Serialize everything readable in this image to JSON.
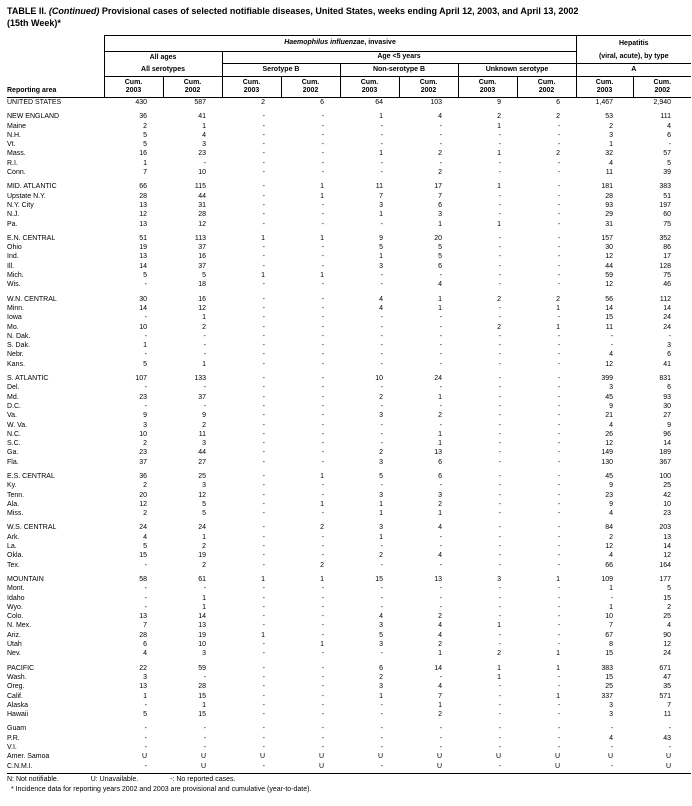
{
  "title": {
    "prefix": "TABLE II. ",
    "continued": "(Continued)",
    "rest": " Provisional cases of selected notifiable diseases, United States, weeks ending April 12, 2003, and April 13, 2002",
    "line2": "(15th Week)*"
  },
  "header": {
    "reporting_area": "Reporting area",
    "hib_italic": "Haemophilus influenzae",
    "hib_rest": ", invasive",
    "hepatitis_line1": "Hepatitis",
    "hepatitis_line2": "(viral, acute), by type",
    "all_ages": "All ages",
    "age_lt5": "Age <5 years",
    "all_serotypes": "All serotypes",
    "serotype_b": "Serotype B",
    "non_serotype_b": "Non-serotype B",
    "unknown_serotype": "Unknown serotype",
    "hep_a": "A",
    "cum2003": "Cum.\n2003",
    "cum2002": "Cum.\n2002"
  },
  "table": {
    "column_groups": [
      "All serotypes Cum. 2003",
      "All serotypes Cum. 2002",
      "Serotype B Cum. 2003",
      "Serotype B Cum. 2002",
      "Non-serotype B Cum. 2003",
      "Non-serotype B Cum. 2002",
      "Unknown serotype Cum. 2003",
      "Unknown serotype Cum. 2002",
      "Hepatitis A Cum. 2003",
      "Hepatitis A Cum. 2002"
    ],
    "sections": [
      {
        "rows": [
          [
            "UNITED STATES",
            "430",
            "587",
            "2",
            "6",
            "64",
            "103",
            "9",
            "6",
            "1,467",
            "2,940"
          ]
        ]
      },
      {
        "rows": [
          [
            "NEW ENGLAND",
            "36",
            "41",
            "-",
            "-",
            "1",
            "4",
            "2",
            "2",
            "53",
            "111"
          ],
          [
            "Maine",
            "2",
            "1",
            "-",
            "-",
            "-",
            "-",
            "1",
            "-",
            "2",
            "4"
          ],
          [
            "N.H.",
            "5",
            "4",
            "-",
            "-",
            "-",
            "-",
            "-",
            "-",
            "3",
            "6"
          ],
          [
            "Vt.",
            "5",
            "3",
            "-",
            "-",
            "-",
            "-",
            "-",
            "-",
            "1",
            "-"
          ],
          [
            "Mass.",
            "16",
            "23",
            "-",
            "-",
            "1",
            "2",
            "1",
            "2",
            "32",
            "57"
          ],
          [
            "R.I.",
            "1",
            "-",
            "-",
            "-",
            "-",
            "-",
            "-",
            "-",
            "4",
            "5"
          ],
          [
            "Conn.",
            "7",
            "10",
            "-",
            "-",
            "-",
            "2",
            "-",
            "-",
            "11",
            "39"
          ]
        ]
      },
      {
        "rows": [
          [
            "MID. ATLANTIC",
            "66",
            "115",
            "-",
            "1",
            "11",
            "17",
            "1",
            "-",
            "181",
            "383"
          ],
          [
            "Upstate N.Y.",
            "28",
            "44",
            "-",
            "1",
            "7",
            "7",
            "-",
            "-",
            "28",
            "51"
          ],
          [
            "N.Y. City",
            "13",
            "31",
            "-",
            "-",
            "3",
            "6",
            "-",
            "-",
            "93",
            "197"
          ],
          [
            "N.J.",
            "12",
            "28",
            "-",
            "-",
            "1",
            "3",
            "-",
            "-",
            "29",
            "60"
          ],
          [
            "Pa.",
            "13",
            "12",
            "-",
            "-",
            "-",
            "1",
            "1",
            "-",
            "31",
            "75"
          ]
        ]
      },
      {
        "rows": [
          [
            "E.N. CENTRAL",
            "51",
            "113",
            "1",
            "1",
            "9",
            "20",
            "-",
            "-",
            "157",
            "352"
          ],
          [
            "Ohio",
            "19",
            "37",
            "-",
            "-",
            "5",
            "5",
            "-",
            "-",
            "30",
            "86"
          ],
          [
            "Ind.",
            "13",
            "16",
            "-",
            "-",
            "1",
            "5",
            "-",
            "-",
            "12",
            "17"
          ],
          [
            "Ill.",
            "14",
            "37",
            "-",
            "-",
            "3",
            "6",
            "-",
            "-",
            "44",
            "128"
          ],
          [
            "Mich.",
            "5",
            "5",
            "1",
            "1",
            "-",
            "-",
            "-",
            "-",
            "59",
            "75"
          ],
          [
            "Wis.",
            "-",
            "18",
            "-",
            "-",
            "-",
            "4",
            "-",
            "-",
            "12",
            "46"
          ]
        ]
      },
      {
        "rows": [
          [
            "W.N. CENTRAL",
            "30",
            "16",
            "-",
            "-",
            "4",
            "1",
            "2",
            "2",
            "56",
            "112"
          ],
          [
            "Minn.",
            "14",
            "12",
            "-",
            "-",
            "4",
            "1",
            "-",
            "1",
            "14",
            "14"
          ],
          [
            "Iowa",
            "-",
            "1",
            "-",
            "-",
            "-",
            "-",
            "-",
            "-",
            "15",
            "24"
          ],
          [
            "Mo.",
            "10",
            "2",
            "-",
            "-",
            "-",
            "-",
            "2",
            "1",
            "11",
            "24"
          ],
          [
            "N. Dak.",
            "-",
            "-",
            "-",
            "-",
            "-",
            "-",
            "-",
            "-",
            "-",
            "-"
          ],
          [
            "S. Dak.",
            "1",
            "-",
            "-",
            "-",
            "-",
            "-",
            "-",
            "-",
            "-",
            "3"
          ],
          [
            "Nebr.",
            "-",
            "-",
            "-",
            "-",
            "-",
            "-",
            "-",
            "-",
            "4",
            "6"
          ],
          [
            "Kans.",
            "5",
            "1",
            "-",
            "-",
            "-",
            "-",
            "-",
            "-",
            "12",
            "41"
          ]
        ]
      },
      {
        "rows": [
          [
            "S. ATLANTIC",
            "107",
            "133",
            "-",
            "-",
            "10",
            "24",
            "-",
            "-",
            "399",
            "831"
          ],
          [
            "Del.",
            "-",
            "-",
            "-",
            "-",
            "-",
            "-",
            "-",
            "-",
            "3",
            "6"
          ],
          [
            "Md.",
            "23",
            "37",
            "-",
            "-",
            "2",
            "1",
            "-",
            "-",
            "45",
            "93"
          ],
          [
            "D.C.",
            "-",
            "-",
            "-",
            "-",
            "-",
            "-",
            "-",
            "-",
            "9",
            "30"
          ],
          [
            "Va.",
            "9",
            "9",
            "-",
            "-",
            "3",
            "2",
            "-",
            "-",
            "21",
            "27"
          ],
          [
            "W. Va.",
            "3",
            "2",
            "-",
            "-",
            "-",
            "-",
            "-",
            "-",
            "4",
            "9"
          ],
          [
            "N.C.",
            "10",
            "11",
            "-",
            "-",
            "-",
            "1",
            "-",
            "-",
            "26",
            "96"
          ],
          [
            "S.C.",
            "2",
            "3",
            "-",
            "-",
            "-",
            "1",
            "-",
            "-",
            "12",
            "14"
          ],
          [
            "Ga.",
            "23",
            "44",
            "-",
            "-",
            "2",
            "13",
            "-",
            "-",
            "149",
            "189"
          ],
          [
            "Fla.",
            "37",
            "27",
            "-",
            "-",
            "3",
            "6",
            "-",
            "-",
            "130",
            "367"
          ]
        ]
      },
      {
        "rows": [
          [
            "E.S. CENTRAL",
            "36",
            "25",
            "-",
            "1",
            "5",
            "6",
            "-",
            "-",
            "45",
            "100"
          ],
          [
            "Ky.",
            "2",
            "3",
            "-",
            "-",
            "-",
            "-",
            "-",
            "-",
            "9",
            "25"
          ],
          [
            "Tenn.",
            "20",
            "12",
            "-",
            "-",
            "3",
            "3",
            "-",
            "-",
            "23",
            "42"
          ],
          [
            "Ala.",
            "12",
            "5",
            "-",
            "1",
            "1",
            "2",
            "-",
            "-",
            "9",
            "10"
          ],
          [
            "Miss.",
            "2",
            "5",
            "-",
            "-",
            "1",
            "1",
            "-",
            "-",
            "4",
            "23"
          ]
        ]
      },
      {
        "rows": [
          [
            "W.S. CENTRAL",
            "24",
            "24",
            "-",
            "2",
            "3",
            "4",
            "-",
            "-",
            "84",
            "203"
          ],
          [
            "Ark.",
            "4",
            "1",
            "-",
            "-",
            "1",
            "-",
            "-",
            "-",
            "2",
            "13"
          ],
          [
            "La.",
            "5",
            "2",
            "-",
            "-",
            "-",
            "-",
            "-",
            "-",
            "12",
            "14"
          ],
          [
            "Okla.",
            "15",
            "19",
            "-",
            "-",
            "2",
            "4",
            "-",
            "-",
            "4",
            "12"
          ],
          [
            "Tex.",
            "-",
            "2",
            "-",
            "2",
            "-",
            "-",
            "-",
            "-",
            "66",
            "164"
          ]
        ]
      },
      {
        "rows": [
          [
            "MOUNTAIN",
            "58",
            "61",
            "1",
            "1",
            "15",
            "13",
            "3",
            "1",
            "109",
            "177"
          ],
          [
            "Mont.",
            "-",
            "-",
            "-",
            "-",
            "-",
            "-",
            "-",
            "-",
            "1",
            "5"
          ],
          [
            "Idaho",
            "-",
            "1",
            "-",
            "-",
            "-",
            "-",
            "-",
            "-",
            "-",
            "15"
          ],
          [
            "Wyo.",
            "-",
            "1",
            "-",
            "-",
            "-",
            "-",
            "-",
            "-",
            "1",
            "2"
          ],
          [
            "Colo.",
            "13",
            "14",
            "-",
            "-",
            "4",
            "2",
            "-",
            "-",
            "10",
            "25"
          ],
          [
            "N. Mex.",
            "7",
            "13",
            "-",
            "-",
            "3",
            "4",
            "1",
            "-",
            "7",
            "4"
          ],
          [
            "Ariz.",
            "28",
            "19",
            "1",
            "-",
            "5",
            "4",
            "-",
            "-",
            "67",
            "90"
          ],
          [
            "Utah",
            "6",
            "10",
            "-",
            "1",
            "3",
            "2",
            "-",
            "-",
            "8",
            "12"
          ],
          [
            "Nev.",
            "4",
            "3",
            "-",
            "-",
            "-",
            "1",
            "2",
            "1",
            "15",
            "24"
          ]
        ]
      },
      {
        "rows": [
          [
            "PACIFIC",
            "22",
            "59",
            "-",
            "-",
            "6",
            "14",
            "1",
            "1",
            "383",
            "671"
          ],
          [
            "Wash.",
            "3",
            "-",
            "-",
            "-",
            "2",
            "-",
            "1",
            "-",
            "15",
            "47"
          ],
          [
            "Oreg.",
            "13",
            "28",
            "-",
            "-",
            "3",
            "4",
            "-",
            "-",
            "25",
            "35"
          ],
          [
            "Calif.",
            "1",
            "15",
            "-",
            "-",
            "1",
            "7",
            "-",
            "1",
            "337",
            "571"
          ],
          [
            "Alaska",
            "-",
            "1",
            "-",
            "-",
            "-",
            "1",
            "-",
            "-",
            "3",
            "7"
          ],
          [
            "Hawaii",
            "5",
            "15",
            "-",
            "-",
            "-",
            "2",
            "-",
            "-",
            "3",
            "11"
          ]
        ]
      },
      {
        "rows": [
          [
            "Guam",
            "-",
            "-",
            "-",
            "-",
            "-",
            "-",
            "-",
            "-",
            "-",
            "-"
          ],
          [
            "P.R.",
            "-",
            "-",
            "-",
            "-",
            "-",
            "-",
            "-",
            "-",
            "4",
            "43"
          ],
          [
            "V.I.",
            "-",
            "-",
            "-",
            "-",
            "-",
            "-",
            "-",
            "-",
            "-",
            "-"
          ],
          [
            "Amer. Samoa",
            "U",
            "U",
            "U",
            "U",
            "U",
            "U",
            "U",
            "U",
            "U",
            "U"
          ],
          [
            "C.N.M.I.",
            "-",
            "U",
            "-",
            "U",
            "-",
            "U",
            "-",
            "U",
            "-",
            "U"
          ]
        ]
      }
    ]
  },
  "footnotes": {
    "legend": [
      "N: Not notifiable.",
      "U: Unavailable.",
      "-: No reported cases."
    ],
    "note": "* Incidence data for reporting years 2002 and 2003 are provisional and cumulative (year-to-date)."
  }
}
